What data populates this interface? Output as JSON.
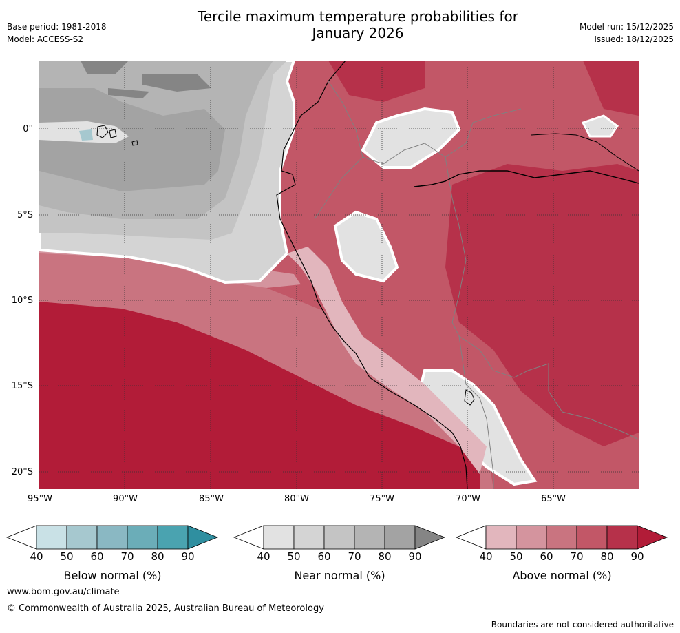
{
  "title": {
    "line1": "Tercile maximum temperature probabilities for",
    "line2": "January 2026"
  },
  "meta": {
    "base_period": "Base period: 1981-2018",
    "model": "Model: ACCESS-S2",
    "model_run": "Model run: 15/12/2025",
    "issued": "Issued: 18/12/2025"
  },
  "axes": {
    "lat_labels": [
      "0°",
      "5°S",
      "10°S",
      "15°S",
      "20°S"
    ],
    "lon_labels": [
      "95°W",
      "90°W",
      "85°W",
      "80°W",
      "75°W",
      "70°W",
      "65°W"
    ]
  },
  "colorbars": [
    {
      "label": "Below normal (%)",
      "ticks": [
        "40",
        "50",
        "60",
        "70",
        "80",
        "90"
      ],
      "colors": [
        "#ffffff",
        "#c9e1e6",
        "#a6c8cf",
        "#8ab8c3",
        "#6badb8",
        "#4aa3b0",
        "#2f8fa0"
      ]
    },
    {
      "label": "Near normal (%)",
      "ticks": [
        "40",
        "50",
        "60",
        "70",
        "80",
        "90"
      ],
      "colors": [
        "#ffffff",
        "#e2e2e2",
        "#d4d4d4",
        "#c4c4c4",
        "#b4b4b4",
        "#a3a3a3",
        "#858585"
      ]
    },
    {
      "label": "Above normal (%)",
      "ticks": [
        "40",
        "50",
        "60",
        "70",
        "80",
        "90"
      ],
      "colors": [
        "#ffffff",
        "#e2b6bd",
        "#d4949e",
        "#c97480",
        "#c25767",
        "#b6314a",
        "#b21c38"
      ]
    }
  ],
  "footer": {
    "url": "www.bom.gov.au/climate",
    "copyright": "© Commonwealth of Australia 2025, Australian Bureau of Meteorology",
    "disclaimer": "Boundaries are not considered authoritative"
  }
}
